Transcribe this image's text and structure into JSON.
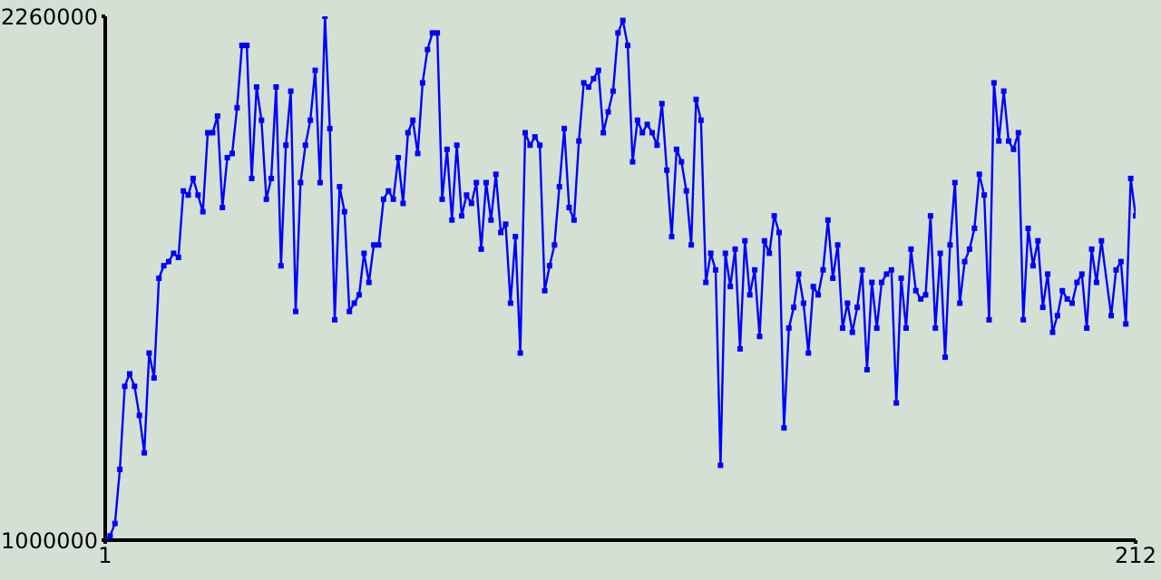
{
  "chart_data": {
    "type": "line",
    "x": [
      1,
      2,
      3,
      4,
      5,
      6,
      7,
      8,
      9,
      10,
      11,
      12,
      13,
      14,
      15,
      16,
      17,
      18,
      19,
      20,
      21,
      22,
      23,
      24,
      25,
      26,
      27,
      28,
      29,
      30,
      31,
      32,
      33,
      34,
      35,
      36,
      37,
      38,
      39,
      40,
      41,
      42,
      43,
      44,
      45,
      46,
      47,
      48,
      49,
      50,
      51,
      52,
      53,
      54,
      55,
      56,
      57,
      58,
      59,
      60,
      61,
      62,
      63,
      64,
      65,
      66,
      67,
      68,
      69,
      70,
      71,
      72,
      73,
      74,
      75,
      76,
      77,
      78,
      79,
      80,
      81,
      82,
      83,
      84,
      85,
      86,
      87,
      88,
      89,
      90,
      91,
      92,
      93,
      94,
      95,
      96,
      97,
      98,
      99,
      100,
      101,
      102,
      103,
      104,
      105,
      106,
      107,
      108,
      109,
      110,
      111,
      112,
      113,
      114,
      115,
      116,
      117,
      118,
      119,
      120,
      121,
      122,
      123,
      124,
      125,
      126,
      127,
      128,
      129,
      130,
      131,
      132,
      133,
      134,
      135,
      136,
      137,
      138,
      139,
      140,
      141,
      142,
      143,
      144,
      145,
      146,
      147,
      148,
      149,
      150,
      151,
      152,
      153,
      154,
      155,
      156,
      157,
      158,
      159,
      160,
      161,
      162,
      163,
      164,
      165,
      166,
      167,
      168,
      169,
      170,
      171,
      172,
      173,
      174,
      175,
      176,
      177,
      178,
      179,
      180,
      181,
      182,
      183,
      184,
      185,
      186,
      187,
      188,
      189,
      190,
      191,
      192,
      193,
      194,
      195,
      196,
      197,
      198,
      199,
      200,
      201,
      202,
      203,
      204,
      205,
      207,
      208,
      209,
      210,
      211,
      212
    ],
    "series": [
      {
        "color": "#0000ff",
        "values": [
          1000000,
          1010000,
          1040000,
          1170000,
          1370000,
          1400000,
          1370000,
          1300000,
          1210000,
          1450000,
          1390000,
          1630000,
          1660000,
          1670000,
          1690000,
          1680000,
          1840000,
          1830000,
          1870000,
          1830000,
          1790000,
          1980000,
          1980000,
          2020000,
          1800000,
          1920000,
          1930000,
          2040000,
          2190000,
          2190000,
          1870000,
          2090000,
          2010000,
          1820000,
          1870000,
          2090000,
          1660000,
          1950000,
          2080000,
          1550000,
          1860000,
          1950000,
          2010000,
          2130000,
          1860000,
          2260000,
          1990000,
          1530000,
          1850000,
          1790000,
          1550000,
          1570000,
          1590000,
          1690000,
          1620000,
          1710000,
          1710000,
          1820000,
          1840000,
          1820000,
          1920000,
          1810000,
          1980000,
          2010000,
          1930000,
          2100000,
          2180000,
          2220000,
          2220000,
          1820000,
          1940000,
          1770000,
          1950000,
          1780000,
          1830000,
          1810000,
          1860000,
          1700000,
          1860000,
          1770000,
          1880000,
          1740000,
          1760000,
          1570000,
          1730000,
          1450000,
          1980000,
          1950000,
          1970000,
          1950000,
          1600000,
          1660000,
          1710000,
          1850000,
          1990000,
          1800000,
          1770000,
          1960000,
          2100000,
          2090000,
          2110000,
          2130000,
          1980000,
          2030000,
          2080000,
          2220000,
          2250000,
          2190000,
          1910000,
          2010000,
          1980000,
          2000000,
          1980000,
          1950000,
          2050000,
          1890000,
          1730000,
          1940000,
          1910000,
          1840000,
          1710000,
          2060000,
          2010000,
          1620000,
          1690000,
          1650000,
          1180000,
          1690000,
          1610000,
          1700000,
          1460000,
          1720000,
          1590000,
          1650000,
          1490000,
          1720000,
          1690000,
          1780000,
          1740000,
          1270000,
          1510000,
          1560000,
          1640000,
          1570000,
          1450000,
          1610000,
          1590000,
          1650000,
          1770000,
          1630000,
          1710000,
          1510000,
          1570000,
          1500000,
          1560000,
          1650000,
          1410000,
          1620000,
          1510000,
          1620000,
          1640000,
          1650000,
          1330000,
          1630000,
          1510000,
          1700000,
          1600000,
          1580000,
          1590000,
          1780000,
          1510000,
          1690000,
          1440000,
          1710000,
          1860000,
          1570000,
          1670000,
          1700000,
          1750000,
          1880000,
          1830000,
          1530000,
          2100000,
          1960000,
          2080000,
          1960000,
          1940000,
          1980000,
          1530000,
          1750000,
          1660000,
          1720000,
          1560000,
          1640000,
          1500000,
          1540000,
          1600000,
          1580000,
          1570000,
          1620000,
          1640000,
          1510000,
          1700000,
          1620000,
          1720000,
          1540000,
          1650000,
          1670000,
          1520000,
          1870000,
          1780000
        ]
      }
    ],
    "xlim": [
      1,
      212
    ],
    "xticks": [
      1,
      212
    ],
    "ylim": [
      1000000,
      2260000
    ],
    "yticks": [
      1000000,
      2260000
    ],
    "grid": false,
    "legend": false,
    "marker": "square",
    "line_style": "solid"
  }
}
